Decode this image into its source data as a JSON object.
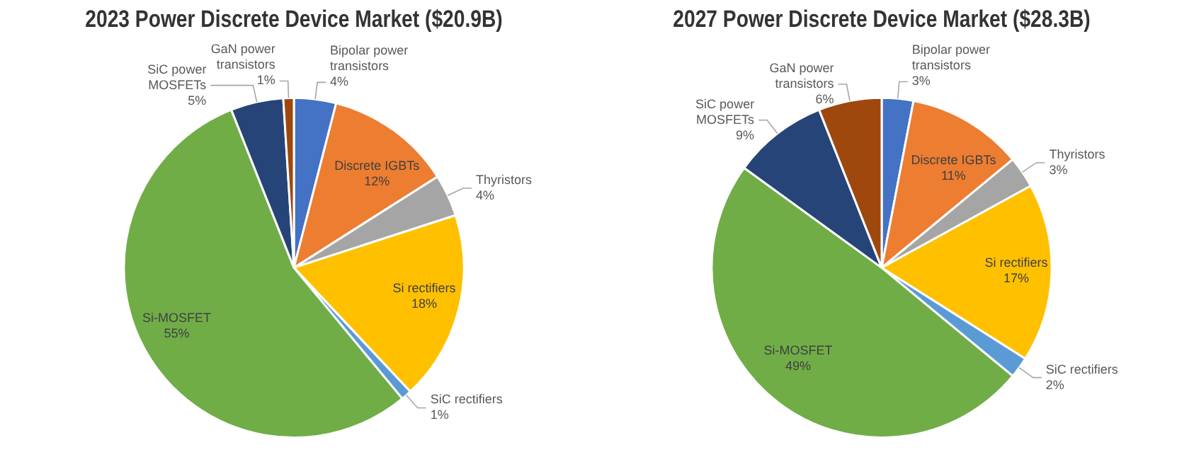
{
  "chart_data": [
    {
      "type": "pie",
      "title": "2023 Power Discrete Device Market ($20.9B)",
      "categories": [
        "Bipolar power transistors",
        "Discrete IGBTs",
        "Thyristors",
        "Si rectifiers",
        "SiC rectifiers",
        "Si-MOSFET",
        "SiC power MOSFETs",
        "GaN power transistors"
      ],
      "values": [
        4,
        12,
        4,
        18,
        1,
        55,
        5,
        1
      ],
      "value_labels": [
        "4%",
        "12%",
        "4%",
        "18%",
        "1%",
        "55%",
        "5%",
        "1%"
      ],
      "colors": [
        "#4472c4",
        "#ed7d31",
        "#a5a5a5",
        "#ffc000",
        "#5b9bd5",
        "#70ad47",
        "#264478",
        "#9e480e"
      ],
      "legend": false
    },
    {
      "type": "pie",
      "title": "2027 Power Discrete Device Market ($28.3B)",
      "categories": [
        "Bipolar power transistors",
        "Discrete IGBTs",
        "Thyristors",
        "Si rectifiers",
        "SiC rectifiers",
        "Si-MOSFET",
        "SiC power MOSFETs",
        "GaN power transistors"
      ],
      "values": [
        3,
        11,
        3,
        17,
        2,
        49,
        9,
        6
      ],
      "value_labels": [
        "3%",
        "11%",
        "3%",
        "17%",
        "2%",
        "49%",
        "9%",
        "6%"
      ],
      "colors": [
        "#4472c4",
        "#ed7d31",
        "#a5a5a5",
        "#ffc000",
        "#5b9bd5",
        "#70ad47",
        "#264478",
        "#9e480e"
      ],
      "legend": false
    }
  ]
}
